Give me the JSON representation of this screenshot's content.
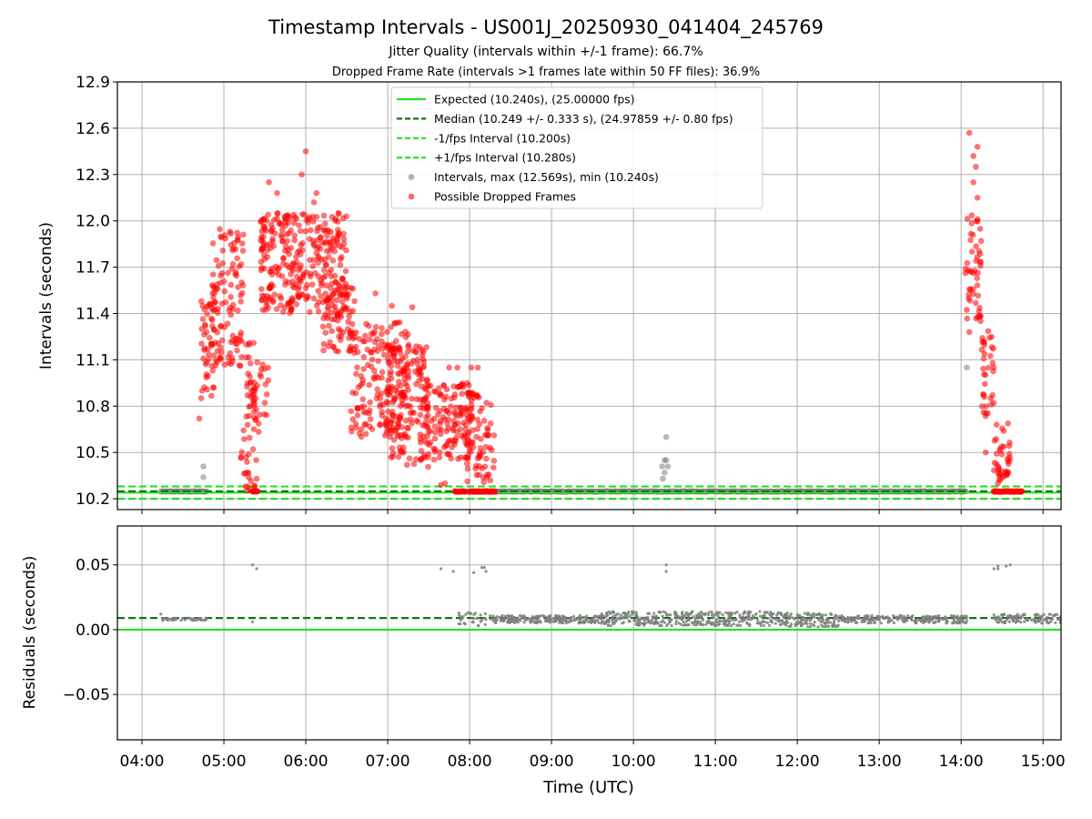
{
  "title": "Timestamp Intervals - US001J_20250930_041404_245769",
  "subtitle1": "Jitter Quality (intervals within +/-1 frame): 66.7%",
  "subtitle2": "Dropped Frame Rate (intervals >1 frames late within 50 FF files): 36.9%",
  "colors": {
    "expected": "#22e022",
    "median": "#117711",
    "interval": "#22e022",
    "gray": "#7f7f7f",
    "red": "#ff0000",
    "grid": "#b0b0b0"
  },
  "chart_data": [
    {
      "type": "scatter",
      "name": "intervals",
      "ylabel": "Intervals (seconds)",
      "xlabel": "",
      "xlim": [
        3.7,
        15.22
      ],
      "ylim": [
        10.13,
        12.9
      ],
      "yticks": [
        10.2,
        10.5,
        10.8,
        11.1,
        11.4,
        11.7,
        12.0,
        12.3,
        12.6,
        12.9
      ],
      "ytick_labels": [
        "10.2",
        "10.5",
        "10.8",
        "11.1",
        "11.4",
        "11.7",
        "12.0",
        "12.3",
        "12.6",
        "12.9"
      ],
      "hlines": [
        {
          "name": "expected",
          "y": 10.24,
          "style": "solid",
          "label": "Expected (10.240s), (25.00000 fps)"
        },
        {
          "name": "median",
          "y": 10.249,
          "style": "dashed",
          "label": "Median (10.249 +/- 0.333 s), (24.97859 +/- 0.80 fps)"
        },
        {
          "name": "minus-fps",
          "y": 10.2,
          "style": "dashed",
          "label": "-1/fps Interval (10.200s)"
        },
        {
          "name": "plus-fps",
          "y": 10.28,
          "style": "dashed",
          "label": "+1/fps Interval (10.280s)"
        }
      ],
      "legend": {
        "position": "upper-center",
        "entries": [
          "Expected (10.240s), (25.00000 fps)",
          "Median (10.249 +/- 0.333 s), (24.97859 +/- 0.80 fps)",
          "-1/fps Interval (10.200s)",
          "+1/fps Interval (10.280s)",
          "Intervals, max (12.569s), min (10.240s)",
          "Possible Dropped Frames"
        ]
      },
      "gray_points": [
        [
          4.75,
          10.41
        ],
        [
          4.75,
          10.34
        ],
        [
          10.35,
          10.41
        ],
        [
          10.38,
          10.45
        ],
        [
          10.4,
          10.45
        ],
        [
          10.42,
          10.41
        ],
        [
          10.4,
          10.6
        ],
        [
          10.38,
          10.37
        ],
        [
          10.36,
          10.33
        ],
        [
          14.07,
          11.05
        ]
      ],
      "baseline_segments": [
        [
          4.23,
          4.8
        ],
        [
          7.95,
          14.07
        ],
        [
          14.4,
          14.75
        ]
      ],
      "red_clusters": [
        {
          "x": [
            4.72,
            4.9
          ],
          "y": [
            10.85,
            11.5
          ],
          "n": 45
        },
        {
          "x": [
            4.85,
            5.25
          ],
          "y": [
            11.05,
            11.95
          ],
          "n": 110
        },
        {
          "x": [
            5.2,
            5.4
          ],
          "y": [
            10.25,
            11.3
          ],
          "n": 55
        },
        {
          "x": [
            5.35,
            5.55
          ],
          "y": [
            10.6,
            11.1
          ],
          "n": 25
        },
        {
          "x": [
            5.45,
            6.5
          ],
          "y": [
            11.4,
            12.05
          ],
          "n": 320
        },
        {
          "x": [
            6.2,
            6.6
          ],
          "y": [
            11.15,
            11.6
          ],
          "n": 70
        },
        {
          "x": [
            6.55,
            7.25
          ],
          "y": [
            10.6,
            11.35
          ],
          "n": 180
        },
        {
          "x": [
            7.0,
            7.5
          ],
          "y": [
            10.4,
            11.2
          ],
          "n": 140
        },
        {
          "x": [
            7.4,
            8.05
          ],
          "y": [
            10.45,
            10.95
          ],
          "n": 150
        },
        {
          "x": [
            7.95,
            8.3
          ],
          "y": [
            10.3,
            10.9
          ],
          "n": 70
        },
        {
          "x": [
            14.05,
            14.25
          ],
          "y": [
            11.35,
            12.05
          ],
          "n": 50
        },
        {
          "x": [
            14.25,
            14.4
          ],
          "y": [
            10.7,
            11.3
          ],
          "n": 35
        },
        {
          "x": [
            14.4,
            14.6
          ],
          "y": [
            10.3,
            10.7
          ],
          "n": 40
        }
      ],
      "red_highlights": [
        [
          6.0,
          12.45
        ],
        [
          6.1,
          12.12
        ],
        [
          6.13,
          12.18
        ],
        [
          5.65,
          12.18
        ],
        [
          5.55,
          12.25
        ],
        [
          5.95,
          12.3
        ],
        [
          6.4,
          12.05
        ],
        [
          14.1,
          12.57
        ],
        [
          14.2,
          12.48
        ],
        [
          14.15,
          12.42
        ],
        [
          14.18,
          12.35
        ],
        [
          14.15,
          12.25
        ],
        [
          14.2,
          12.15
        ],
        [
          4.7,
          10.72
        ],
        [
          5.38,
          10.28
        ],
        [
          5.4,
          10.33
        ],
        [
          6.85,
          11.53
        ],
        [
          7.05,
          11.45
        ],
        [
          7.3,
          11.44
        ],
        [
          7.75,
          11.05
        ],
        [
          7.85,
          11.05
        ],
        [
          8.02,
          11.05
        ],
        [
          8.1,
          11.05
        ],
        [
          7.65,
          10.29
        ],
        [
          7.7,
          10.3
        ],
        [
          14.1,
          11.28
        ],
        [
          14.45,
          10.3
        ],
        [
          14.3,
          10.5
        ]
      ],
      "red_baseline_segments": [
        [
          5.35,
          5.42
        ],
        [
          7.82,
          7.95
        ],
        [
          8.0,
          8.32
        ],
        [
          14.4,
          14.75
        ]
      ]
    },
    {
      "type": "scatter",
      "name": "residuals",
      "ylabel": "Residuals (seconds)",
      "xlabel": "Time (UTC)",
      "xlim": [
        3.7,
        15.22
      ],
      "ylim": [
        -0.085,
        0.08
      ],
      "yticks": [
        -0.05,
        0.0,
        0.05
      ],
      "ytick_labels": [
        "−0.05",
        "0.00",
        "0.05"
      ],
      "xticks": [
        4,
        5,
        6,
        7,
        8,
        9,
        10,
        11,
        12,
        13,
        14,
        15
      ],
      "xtick_labels": [
        "04:00",
        "05:00",
        "06:00",
        "07:00",
        "08:00",
        "09:00",
        "10:00",
        "11:00",
        "12:00",
        "13:00",
        "14:00",
        "15:00"
      ],
      "hlines": [
        {
          "name": "zero-line",
          "y": 0.0,
          "style": "solid"
        },
        {
          "name": "median-residual",
          "y": 0.009,
          "style": "dashed"
        }
      ],
      "outliers": [
        [
          4.23,
          0.012
        ],
        [
          5.35,
          0.05
        ],
        [
          5.4,
          0.047
        ],
        [
          5.35,
          0.006
        ],
        [
          7.65,
          0.047
        ],
        [
          7.8,
          0.045
        ],
        [
          8.05,
          0.044
        ],
        [
          8.15,
          0.048
        ],
        [
          8.2,
          0.045
        ],
        [
          8.18,
          0.048
        ],
        [
          10.4,
          0.05
        ],
        [
          10.4,
          0.045
        ],
        [
          14.4,
          0.047
        ],
        [
          14.45,
          0.049
        ],
        [
          14.55,
          0.049
        ],
        [
          14.6,
          0.05
        ],
        [
          14.45,
          0.047
        ]
      ],
      "dense_segments": [
        {
          "x": [
            4.23,
            4.8
          ],
          "y": [
            0.007,
            0.009
          ],
          "n": 40
        },
        {
          "x": [
            7.85,
            8.2
          ],
          "y": [
            0.003,
            0.013
          ],
          "n": 30
        },
        {
          "x": [
            8.25,
            9.6
          ],
          "y": [
            0.005,
            0.011
          ],
          "n": 200
        },
        {
          "x": [
            9.6,
            11.8
          ],
          "y": [
            0.003,
            0.014
          ],
          "n": 360
        },
        {
          "x": [
            11.8,
            12.5
          ],
          "y": [
            0.002,
            0.013
          ],
          "n": 120
        },
        {
          "x": [
            12.5,
            14.07
          ],
          "y": [
            0.005,
            0.011
          ],
          "n": 220
        },
        {
          "x": [
            14.4,
            15.22
          ],
          "y": [
            0.005,
            0.012
          ],
          "n": 110
        }
      ]
    }
  ]
}
